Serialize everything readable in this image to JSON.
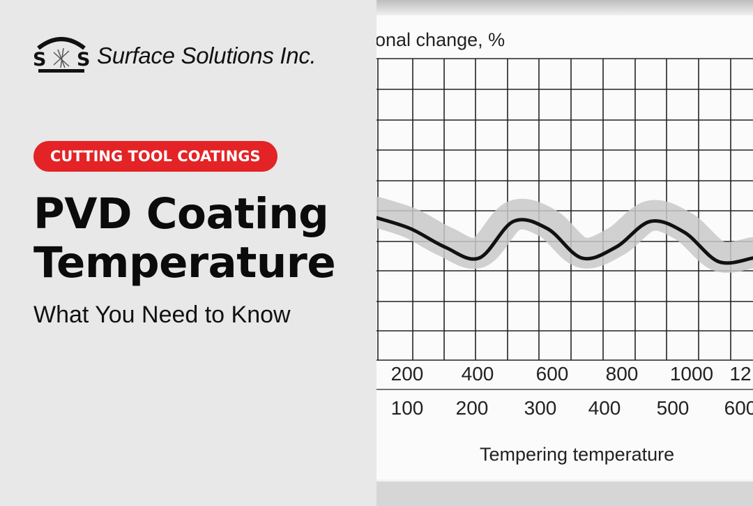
{
  "brand": {
    "logo_initials": "S S",
    "name": "Surface Solutions Inc."
  },
  "badge": {
    "label": "CUTTING TOOL COATINGS"
  },
  "headline": {
    "line1": "PVD Coating",
    "line2": "Temperature",
    "subtitle": "What You Need to Know"
  },
  "colors": {
    "badge_bg": "#e32326",
    "text": "#0b0b0b",
    "panel_bg": "#e8e8e8",
    "chart_band": "#c8c8c8",
    "chart_curve": "#111111"
  },
  "chart_data": {
    "type": "line",
    "ylabel": "onal change, %",
    "xlabel": "Tempering temperature",
    "x_axis_top_ticks": [
      "200",
      "400",
      "600",
      "800",
      "1000",
      "12"
    ],
    "x_axis_bottom_ticks": [
      "100",
      "200",
      "300",
      "400",
      "500",
      "600"
    ],
    "grid": true,
    "series": [
      {
        "x": [
          100,
          150,
          200,
          250,
          300,
          350,
          400,
          450,
          500,
          550,
          600,
          650
        ],
        "y": [
          0.6,
          0.45,
          0.2,
          0.05,
          0.55,
          0.45,
          0.05,
          0.2,
          0.55,
          0.4,
          0.0,
          0.05
        ]
      }
    ]
  }
}
